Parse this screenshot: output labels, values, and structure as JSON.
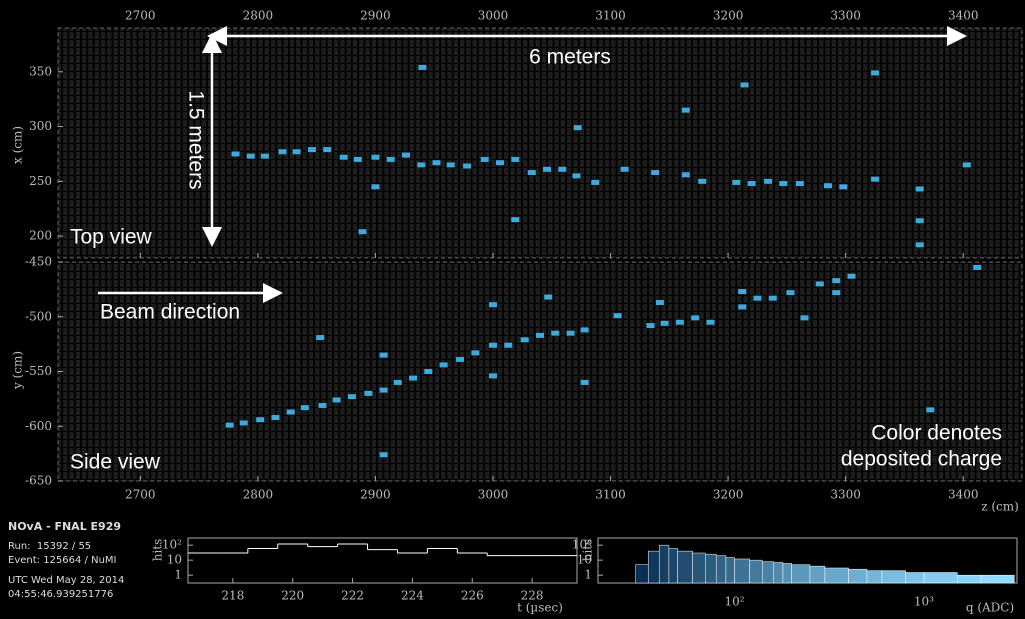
{
  "chart_data": [
    {
      "type": "scatter",
      "y_label": "x (cm)",
      "annotations": {
        "length": "6 meters",
        "height": "1.5 meters",
        "view": "Top view"
      },
      "xlim": [
        2630,
        3450
      ],
      "xticks": [
        2700,
        2800,
        2900,
        3000,
        3100,
        3200,
        3300,
        3400
      ],
      "ylim": [
        180,
        390
      ],
      "yticks": [
        200,
        250,
        300,
        350
      ],
      "color": "#3fa9dc",
      "x": [
        2781,
        2794,
        2806,
        2821,
        2833,
        2846,
        2859,
        2873,
        2885,
        2900,
        2913,
        2926,
        2939,
        2952,
        2964,
        2978,
        2993,
        3006,
        3019,
        3033,
        3046,
        3059,
        3071,
        3087,
        3112,
        3138,
        3164,
        3178,
        3207,
        3220,
        3234,
        3247,
        3261,
        3285,
        3298,
        3325,
        3363,
        3403,
        2940,
        3072,
        3164,
        3214,
        3325,
        2889,
        3019,
        3363,
        3363,
        2900
      ],
      "y": [
        275,
        273,
        273,
        277,
        277,
        279,
        279,
        272,
        270,
        272,
        270,
        274,
        265,
        267,
        265,
        264,
        270,
        267,
        270,
        258,
        261,
        261,
        255,
        249,
        261,
        258,
        256,
        250,
        249,
        248,
        250,
        248,
        248,
        246,
        245,
        252,
        243,
        265,
        354,
        299,
        315,
        338,
        349,
        204,
        215,
        214,
        192,
        245
      ]
    },
    {
      "type": "scatter",
      "y_label": "y (cm)",
      "x_label": "z (cm)",
      "annotations": {
        "beam": "Beam direction",
        "view": "Side view",
        "charge": [
          "Color denotes",
          "deposited charge"
        ]
      },
      "xlim": [
        2630,
        3450
      ],
      "xticks": [
        2700,
        2800,
        2900,
        3000,
        3100,
        3200,
        3300,
        3400
      ],
      "ylim": [
        -650,
        -450
      ],
      "yticks": [
        -650,
        -600,
        -550,
        -500,
        -450
      ],
      "color": "#3fa9dc",
      "x": [
        2776,
        2788,
        2802,
        2815,
        2828,
        2840,
        2855,
        2867,
        2880,
        2894,
        2907,
        2919,
        2932,
        2945,
        2958,
        2972,
        2985,
        3000,
        3013,
        3027,
        3040,
        3053,
        3066,
        3078,
        3106,
        3134,
        3146,
        3159,
        3172,
        3185,
        3212,
        3225,
        3238,
        3253,
        3278,
        3292,
        3305,
        3292,
        3265,
        3412,
        3000,
        3047,
        3142,
        3212,
        2853,
        2907,
        3078,
        3372,
        2907,
        3000
      ],
      "y": [
        -599,
        -597,
        -594,
        -592,
        -587,
        -583,
        -581,
        -576,
        -573,
        -570,
        -567,
        -560,
        -556,
        -550,
        -544,
        -539,
        -533,
        -526,
        -526,
        -521,
        -517,
        -515,
        -515,
        -512,
        -499,
        -508,
        -506,
        -505,
        -501,
        -505,
        -477,
        -483,
        -483,
        -478,
        -470,
        -467,
        -463,
        -478,
        -501,
        -455,
        -489,
        -482,
        -487,
        -491,
        -519,
        -535,
        -560,
        -585,
        -626,
        -554
      ]
    },
    {
      "type": "histogram",
      "x_label": "t (µsec)",
      "y_label": "hits",
      "bins": [
        216.5,
        217.5,
        218.5,
        219.5,
        220.5,
        221.5,
        222.5,
        223.5,
        224.5,
        225.5,
        226.5,
        227.5,
        228.5,
        229.5
      ],
      "values": [
        30,
        30,
        60,
        120,
        80,
        120,
        50,
        30,
        60,
        30,
        20,
        20,
        20
      ],
      "xlim": [
        216.5,
        229.5
      ],
      "xticks": [
        218,
        220,
        222,
        224,
        226,
        228
      ],
      "ylim": [
        0.3,
        300
      ],
      "yticks": [
        1,
        10,
        {
          "value": 100,
          "label": "10²"
        }
      ],
      "log_y": true,
      "color": "#ffffff"
    },
    {
      "type": "histogram",
      "x_label": "q (ADC)",
      "y_label": "hits",
      "bins": [
        30,
        35,
        40,
        45,
        50,
        60,
        70,
        80,
        90,
        100,
        120,
        140,
        160,
        180,
        200,
        250,
        300,
        400,
        500,
        600,
        800,
        1000,
        1500,
        2000,
        3000
      ],
      "values": [
        5,
        40,
        100,
        60,
        40,
        30,
        25,
        20,
        15,
        12,
        10,
        8,
        7,
        6,
        5,
        4,
        3,
        2.5,
        2,
        2,
        1.5,
        1.5,
        1,
        1
      ],
      "xlim": [
        19,
        3100
      ],
      "xticks": [
        {
          "value": 100,
          "label": "10²"
        },
        {
          "value": 1000,
          "label": "10³"
        }
      ],
      "log_x": true,
      "ylim": [
        0.3,
        300
      ],
      "yticks": [
        1,
        10,
        {
          "value": 100,
          "label": "10²"
        }
      ],
      "log_y": true,
      "color_scale": [
        "#0b2f52",
        "#8fdcff"
      ]
    }
  ],
  "info": {
    "title": "NOvA - FNAL E929",
    "run": "Run:  15392 / 55",
    "event": "Event: 125664 / NuMI",
    "date": "UTC Wed May 28, 2014",
    "time": "04:55:46.939251776"
  }
}
